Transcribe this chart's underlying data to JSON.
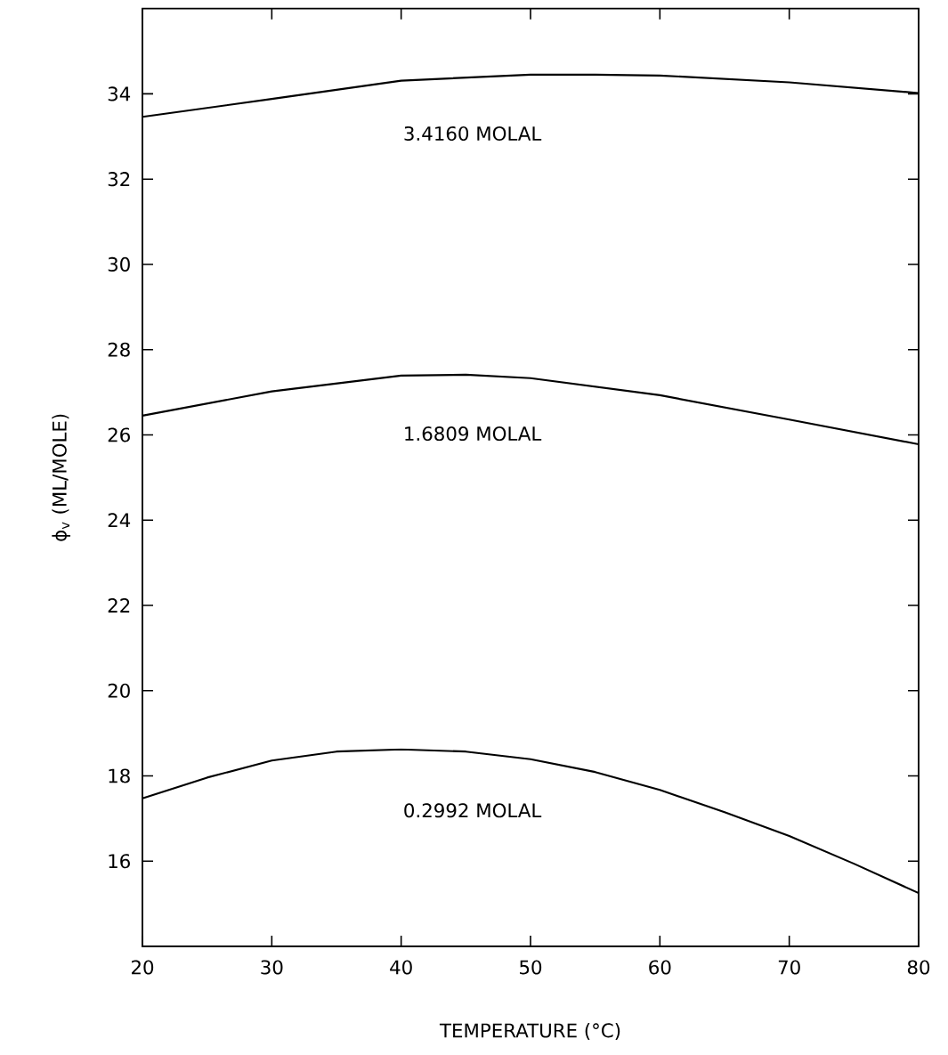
{
  "chart_data": {
    "type": "line",
    "xlabel": "TEMPERATURE (°C)",
    "ylabel": "ϕ$_{v}$  (ML/MOLE)",
    "xlim": [
      20,
      80
    ],
    "ylim": [
      14,
      36
    ],
    "xticks": [
      20,
      30,
      40,
      50,
      60,
      70,
      80
    ],
    "yticks": [
      16,
      18,
      20,
      22,
      24,
      26,
      28,
      30,
      32,
      34
    ],
    "grid": false,
    "series": [
      {
        "name": "3.4160 MOLAL",
        "color": "#000000",
        "x": [
          20,
          30,
          40,
          50,
          55,
          60,
          70,
          80
        ],
        "values": [
          33.46,
          33.88,
          34.31,
          34.45,
          34.45,
          34.43,
          34.27,
          34.02
        ]
      },
      {
        "name": "1.6809 MOLAL",
        "color": "#000000",
        "x": [
          20,
          30,
          40,
          45,
          50,
          60,
          70,
          80
        ],
        "values": [
          26.45,
          27.02,
          27.39,
          27.41,
          27.33,
          26.93,
          26.36,
          25.78
        ]
      },
      {
        "name": "0.2992 MOLAL",
        "color": "#000000",
        "x": [
          20,
          25,
          30,
          35,
          40,
          45,
          50,
          55,
          60,
          65,
          70,
          75,
          80
        ],
        "values": [
          17.47,
          17.96,
          18.36,
          18.57,
          18.62,
          18.57,
          18.39,
          18.09,
          17.67,
          17.15,
          16.59,
          15.94,
          15.25
        ]
      }
    ]
  }
}
